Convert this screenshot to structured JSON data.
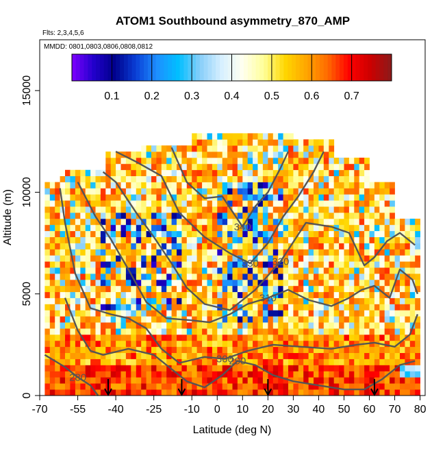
{
  "chart_data": {
    "type": "heatmap",
    "title": "ATOM1 Southbound asymmetry_870_AMP",
    "subtitle_flights": "Flts: 2,3,4,5,6",
    "subtitle_dates": "MMDD: 0801,0803,0806,0808,0812",
    "xlabel": "Latitude (deg N)",
    "ylabel": "Altitude (m)",
    "xlim": [
      -70,
      82
    ],
    "ylim": [
      0,
      17500
    ],
    "x_ticks": [
      -70,
      -55,
      -40,
      -25,
      -10,
      0,
      10,
      20,
      30,
      40,
      50,
      60,
      70,
      80
    ],
    "y_ticks": [
      0,
      5000,
      10000,
      15000
    ],
    "colorbar": {
      "range": [
        0,
        0.8
      ],
      "ticks": [
        0.1,
        0.2,
        0.3,
        0.4,
        0.5,
        0.6,
        0.7
      ],
      "colors": [
        "#7f00ff",
        "#2200cc",
        "#00008b",
        "#0a3fd6",
        "#1e90ff",
        "#00bfff",
        "#87cefa",
        "#d6efff",
        "#fffff0",
        "#ffff99",
        "#ffd700",
        "#ffa500",
        "#ff6a00",
        "#ff0000",
        "#cc0000",
        "#8b1a1a"
      ]
    },
    "field": {
      "lat_bins": [
        -68,
        80
      ],
      "alt_bins": [
        0,
        13000
      ],
      "description_values": "Asymmetry parameter values mostly 0.45-0.65; lower values (0.05-0.3) scattered mid-troposphere near -45 to -15 and near 0-25; high values (0.65-0.75) near surface below 1500 m."
    },
    "contours": [
      {
        "label": "280",
        "points": [
          [
            -68,
            2000
          ],
          [
            -60,
            1400
          ],
          [
            -55,
            900
          ],
          [
            -50,
            500
          ],
          [
            -47,
            0
          ]
        ]
      },
      {
        "label": "290",
        "points": [
          [
            -60,
            4800
          ],
          [
            -55,
            3200
          ],
          [
            -50,
            2200
          ],
          [
            -45,
            2000
          ],
          [
            -35,
            2300
          ],
          [
            -25,
            2000
          ],
          [
            -20,
            1500
          ],
          [
            -12,
            700
          ],
          [
            -5,
            400
          ],
          [
            2,
            1000
          ],
          [
            8,
            1700
          ],
          [
            15,
            1500
          ],
          [
            22,
            1000
          ],
          [
            30,
            700
          ],
          [
            40,
            500
          ],
          [
            50,
            300
          ],
          [
            58,
            300
          ],
          [
            65,
            800
          ],
          [
            72,
            1500
          ],
          [
            78,
            1700
          ]
        ]
      },
      {
        "label": "300",
        "points": [
          [
            -62,
            10200
          ],
          [
            -60,
            8500
          ],
          [
            -56,
            6000
          ],
          [
            -50,
            4300
          ],
          [
            -42,
            4000
          ],
          [
            -35,
            3800
          ],
          [
            -28,
            3300
          ],
          [
            -22,
            2300
          ],
          [
            -15,
            1600
          ],
          [
            -5,
            1900
          ],
          [
            3,
            1800
          ],
          [
            12,
            2200
          ],
          [
            22,
            2500
          ],
          [
            33,
            2400
          ],
          [
            45,
            2300
          ],
          [
            55,
            2500
          ],
          [
            62,
            2600
          ],
          [
            70,
            2400
          ],
          [
            76,
            3000
          ],
          [
            79,
            4000
          ]
        ]
      },
      {
        "label": "310",
        "points": [
          [
            -55,
            10500
          ],
          [
            -48,
            8800
          ],
          [
            -42,
            7700
          ],
          [
            -35,
            6200
          ],
          [
            -28,
            4600
          ],
          [
            -20,
            3800
          ],
          [
            -10,
            3700
          ],
          [
            -3,
            3600
          ],
          [
            5,
            4000
          ],
          [
            12,
            4500
          ],
          [
            20,
            4800
          ],
          [
            28,
            5200
          ],
          [
            36,
            4700
          ],
          [
            45,
            4400
          ],
          [
            52,
            4800
          ],
          [
            57,
            5200
          ],
          [
            62,
            5400
          ],
          [
            68,
            4800
          ],
          [
            72,
            6200
          ],
          [
            77,
            5700
          ],
          [
            79,
            5000
          ]
        ]
      },
      {
        "label": "320",
        "points": [
          [
            -45,
            11000
          ],
          [
            -40,
            10500
          ],
          [
            -32,
            9000
          ],
          [
            -25,
            7800
          ],
          [
            -18,
            6500
          ],
          [
            -12,
            5300
          ],
          [
            -5,
            4500
          ],
          [
            5,
            4200
          ],
          [
            15,
            5200
          ],
          [
            25,
            6600
          ],
          [
            35,
            8500
          ],
          [
            45,
            8300
          ],
          [
            52,
            8000
          ],
          [
            58,
            6400
          ],
          [
            62,
            6800
          ],
          [
            67,
            7600
          ],
          [
            72,
            8000
          ],
          [
            78,
            7400
          ]
        ]
      },
      {
        "label": "330",
        "points": [
          [
            -40,
            12000
          ],
          [
            -32,
            11500
          ],
          [
            -22,
            10800
          ],
          [
            -15,
            9000
          ],
          [
            -5,
            7800
          ],
          [
            5,
            7000
          ],
          [
            13,
            6500
          ],
          [
            20,
            7500
          ],
          [
            26,
            8800
          ],
          [
            32,
            9800
          ],
          [
            38,
            11000
          ],
          [
            42,
            12000
          ]
        ]
      },
      {
        "label": "340",
        "points": [
          [
            -18,
            12200
          ],
          [
            -12,
            10500
          ],
          [
            -5,
            9700
          ],
          [
            2,
            9800
          ],
          [
            10,
            8300
          ],
          [
            15,
            9300
          ],
          [
            20,
            10000
          ],
          [
            25,
            11200
          ],
          [
            28,
            12000
          ]
        ]
      }
    ],
    "arrows_lat": [
      -43,
      -14,
      20,
      62
    ]
  }
}
